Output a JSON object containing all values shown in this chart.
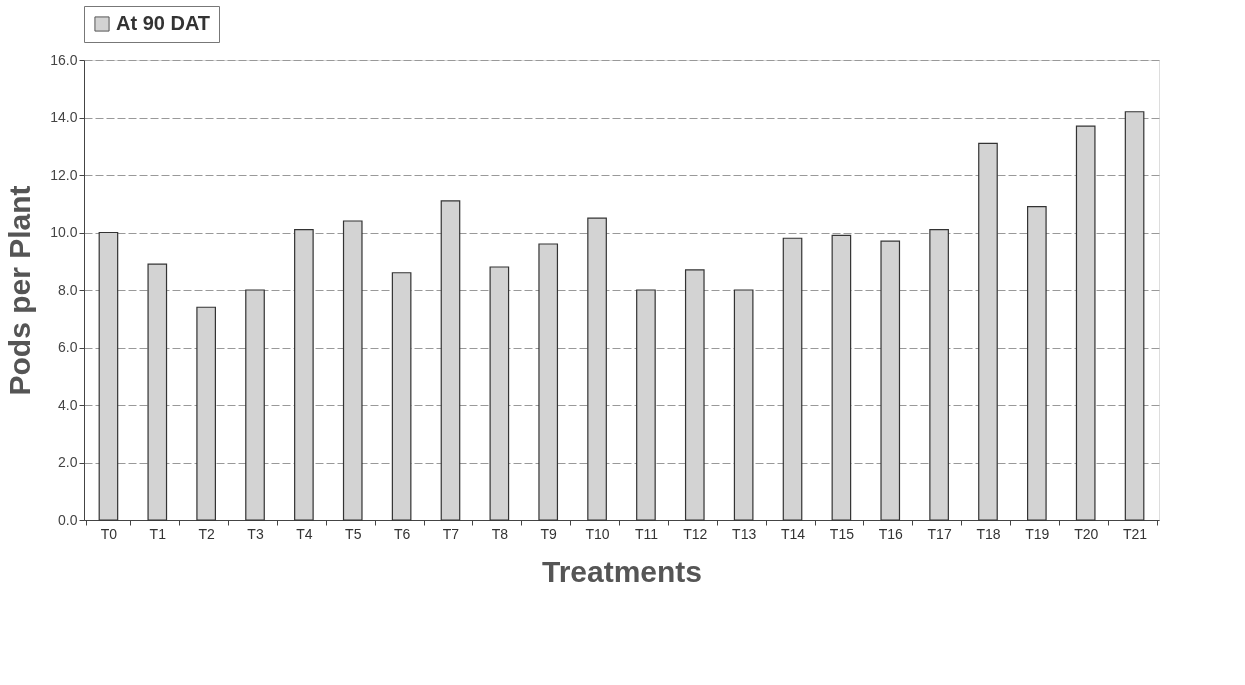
{
  "chart_data": {
    "type": "bar",
    "xlabel": "Treatments",
    "ylabel": "Pods per Plant",
    "categories": [
      "T0",
      "T1",
      "T2",
      "T3",
      "T4",
      "T5",
      "T6",
      "T7",
      "T8",
      "T9",
      "T10",
      "T11",
      "T12",
      "T13",
      "T14",
      "T15",
      "T16",
      "T17",
      "T18",
      "T19",
      "T20",
      "T21"
    ],
    "series": [
      {
        "name": "At 90 DAT",
        "color": "#d3d3d3",
        "values": [
          10.0,
          8.9,
          7.4,
          8.0,
          10.1,
          10.4,
          8.6,
          11.1,
          8.8,
          9.6,
          10.5,
          8.0,
          8.7,
          8.0,
          9.8,
          9.9,
          9.7,
          10.1,
          13.1,
          10.9,
          13.7,
          14.2
        ]
      }
    ],
    "ylim": [
      0,
      16
    ],
    "yticks": [
      {
        "value": 0,
        "label": "0.0"
      },
      {
        "value": 2,
        "label": "2.0"
      },
      {
        "value": 4,
        "label": "4.0"
      },
      {
        "value": 6,
        "label": "6.0"
      },
      {
        "value": 8,
        "label": "8.0"
      },
      {
        "value": 10,
        "label": "10.0"
      },
      {
        "value": 12,
        "label": "12.0"
      },
      {
        "value": 14,
        "label": "14.0"
      },
      {
        "value": 16,
        "label": "16.0"
      }
    ],
    "grid": "y",
    "legend": "top"
  }
}
